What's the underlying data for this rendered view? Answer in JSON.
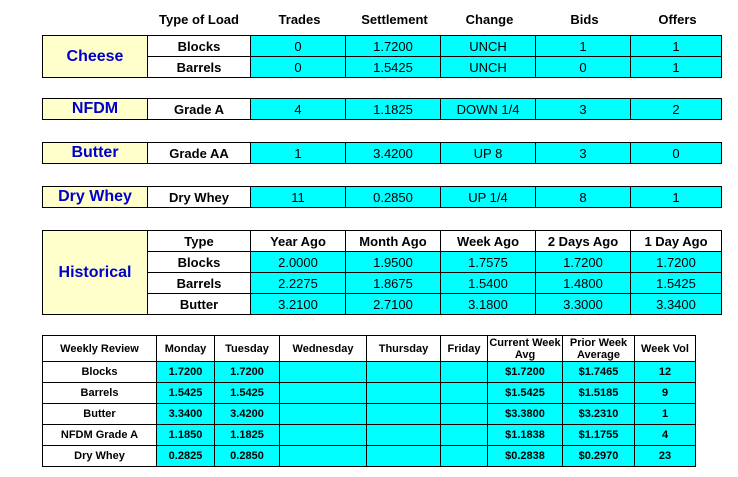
{
  "header": {
    "type_of_load": "Type of Load",
    "trades": "Trades",
    "settlement": "Settlement",
    "change": "Change",
    "bids": "Bids",
    "offers": "Offers"
  },
  "cheese": {
    "label": "Cheese",
    "rows": [
      {
        "type": "Blocks",
        "trades": "0",
        "settlement": "1.7200",
        "change": "UNCH",
        "bids": "1",
        "offers": "1"
      },
      {
        "type": "Barrels",
        "trades": "0",
        "settlement": "1.5425",
        "change": "UNCH",
        "bids": "0",
        "offers": "1"
      }
    ]
  },
  "nfdm": {
    "label": "NFDM",
    "row": {
      "type": "Grade A",
      "trades": "4",
      "settlement": "1.1825",
      "change": "DOWN 1/4",
      "bids": "3",
      "offers": "2"
    }
  },
  "butter": {
    "label": "Butter",
    "row": {
      "type": "Grade AA",
      "trades": "1",
      "settlement": "3.4200",
      "change": "UP 8",
      "bids": "3",
      "offers": "0"
    }
  },
  "drywhey": {
    "label": "Dry Whey",
    "row": {
      "type": "Dry Whey",
      "trades": "11",
      "settlement": "0.2850",
      "change": "UP 1/4",
      "bids": "8",
      "offers": "1"
    }
  },
  "historical": {
    "label": "Historical",
    "headers": [
      "Type",
      "Year Ago",
      "Month Ago",
      "Week Ago",
      "2 Days Ago",
      "1 Day Ago"
    ],
    "rows": [
      [
        "Blocks",
        "2.0000",
        "1.9500",
        "1.7575",
        "1.7200",
        "1.7200"
      ],
      [
        "Barrels",
        "2.2275",
        "1.8675",
        "1.5400",
        "1.4800",
        "1.5425"
      ],
      [
        "Butter",
        "3.2100",
        "2.7100",
        "3.1800",
        "3.3000",
        "3.3400"
      ]
    ]
  },
  "weekly": {
    "headers": [
      "Weekly Review",
      "Monday",
      "Tuesday",
      "Wednesday",
      "Thursday",
      "Friday",
      "Current Week Avg",
      "Prior Week Average",
      "Week Vol"
    ],
    "rows": [
      [
        "Blocks",
        "1.7200",
        "1.7200",
        "",
        "",
        "",
        "$1.7200",
        "$1.7465",
        "12"
      ],
      [
        "Barrels",
        "1.5425",
        "1.5425",
        "",
        "",
        "",
        "$1.5425",
        "$1.5185",
        "9"
      ],
      [
        "Butter",
        "3.3400",
        "3.4200",
        "",
        "",
        "",
        "$3.3800",
        "$3.2310",
        "1"
      ],
      [
        "NFDM Grade A",
        "1.1850",
        "1.1825",
        "",
        "",
        "",
        "$1.1838",
        "$1.1755",
        "4"
      ],
      [
        "Dry Whey",
        "0.2825",
        "0.2850",
        "",
        "",
        "",
        "$0.2838",
        "$0.2970",
        "23"
      ]
    ]
  },
  "colors": {
    "label_bg": "#ffffcc",
    "label_text": "#0000cc",
    "cell_bg": "#00ffff"
  }
}
